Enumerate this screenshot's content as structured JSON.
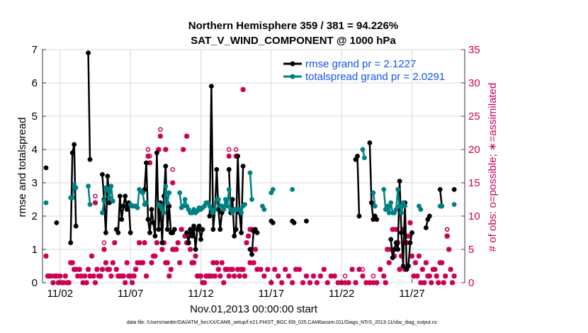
{
  "chart_data": {
    "type": "line",
    "title": "Northern Hemisphere 359 / 381 = 94.226%",
    "subtitle": "SAT_V_WIND_COMPONENT @ 1000 hPa",
    "xlabel": "Nov.01,2013 00:00:00 start",
    "ylabel": "rmse and totalspread",
    "ylabel_right": "# of obs: o=possible; ∗=assimilated",
    "xlim": [
      0.75,
      30.75
    ],
    "ylim": [
      0,
      7
    ],
    "ylim_right": [
      0,
      35
    ],
    "x_ticks": [
      2,
      7,
      12,
      17,
      22,
      27
    ],
    "x_tick_labels": [
      "11/02",
      "11/07",
      "11/12",
      "11/17",
      "11/22",
      "11/27"
    ],
    "y_ticks": [
      0,
      1,
      2,
      3,
      4,
      5,
      6,
      7
    ],
    "y_ticks_right": [
      0,
      5,
      10,
      15,
      20,
      25,
      30,
      35
    ],
    "legend_position": "top-right",
    "series": [
      {
        "name": "rmse grand pr = 2.1227",
        "color": "#000000",
        "x": [
          1.0,
          null,
          1.75,
          null,
          2.75,
          2.875,
          3.0,
          3.125,
          null,
          4.0,
          4.125,
          null,
          5.0,
          5.125,
          5.25,
          5.375,
          5.5,
          null,
          6.0,
          6.125,
          6.25,
          6.375,
          6.5,
          6.625,
          6.75,
          6.875,
          7.0,
          null,
          8.0,
          8.125,
          8.25,
          8.375,
          8.5,
          8.625,
          8.75,
          8.875,
          9.0,
          9.125,
          9.25,
          9.375,
          9.5,
          9.625,
          9.75,
          9.875,
          10.0,
          10.125,
          null,
          11.0,
          11.125,
          11.25,
          11.375,
          11.5,
          11.625,
          11.75,
          11.875,
          12.0,
          12.125,
          null,
          12.625,
          12.75,
          12.875,
          13.0,
          13.125,
          13.25,
          13.375,
          13.5,
          null,
          14.0,
          14.125,
          14.25,
          14.375,
          14.5,
          14.625,
          14.75,
          14.875,
          15.0,
          null,
          15.5,
          15.625,
          15.75,
          15.875,
          16.0,
          null,
          17.0,
          17.125,
          null,
          18.5,
          18.625,
          null,
          19.5,
          null,
          23.0,
          23.125,
          23.25,
          null,
          24.0,
          24.125,
          24.25,
          24.375,
          24.5,
          null,
          25.5,
          25.625,
          25.75,
          25.875,
          26.0,
          26.125,
          26.25,
          26.375,
          26.5,
          26.625,
          26.75,
          26.875,
          27.0,
          null,
          28.0,
          28.125,
          28.25,
          null,
          29.0,
          29.125,
          null,
          30.0
        ],
        "values": [
          3.45,
          null,
          1.8,
          null,
          1.2,
          3.9,
          4.15,
          1.7,
          null,
          6.9,
          3.7,
          null,
          3.25,
          2.5,
          1.5,
          3.2,
          2.4,
          null,
          1.6,
          1.5,
          2.6,
          1.9,
          2.3,
          2.6,
          2.2,
          2.4,
          1.5,
          null,
          2.8,
          3.6,
          1.9,
          1.5,
          2.2,
          1.8,
          1.4,
          3.9,
          1.6,
          2.4,
          1.2,
          2.6,
          3.5,
          1.6,
          2.3,
          1.5,
          1.5,
          1.6,
          null,
          1.5,
          1.2,
          1.6,
          1.4,
          1.7,
          1.0,
          1.6,
          1.7,
          1.3,
          1.6,
          null,
          2.0,
          5.9,
          1.6,
          2.2,
          3.4,
          2.2,
          1.6,
          2.1,
          null,
          3.4,
          2.1,
          2.5,
          1.4,
          1.6,
          3.8,
          2.1,
          1.5,
          3.5,
          null,
          1.0,
          0.85,
          1.55,
          1.6,
          1.5,
          null,
          1.85,
          1.8,
          null,
          1.85,
          1.8,
          null,
          1.85,
          null,
          3.7,
          3.8,
          2.0,
          null,
          4.2,
          2.4,
          1.9,
          2.0,
          1.9,
          null,
          1.3,
          0.75,
          1.0,
          1.2,
          1.0,
          3.05,
          1.5,
          0.5,
          2.4,
          0.4,
          0.5,
          1.2,
          1.5,
          null,
          1.65,
          1.9,
          2.0,
          null,
          2.8,
          2.3,
          null,
          2.8
        ]
      },
      {
        "name": "totalspread grand pr = 2.0291",
        "color": "#008080",
        "x": [
          1.0,
          null,
          2.75,
          2.875,
          3.0,
          3.125,
          null,
          4.0,
          4.125,
          null,
          5.0,
          5.125,
          5.25,
          5.375,
          5.5,
          5.625,
          5.75,
          null,
          7.0,
          7.125,
          7.25,
          7.375,
          7.5,
          7.625,
          7.75,
          7.875,
          8.0,
          8.125,
          null,
          9.0,
          9.125,
          9.25,
          9.375,
          9.5,
          9.625,
          9.75,
          null,
          10.5,
          10.625,
          10.75,
          10.875,
          11.0,
          11.125,
          11.25,
          11.375,
          11.5,
          11.625,
          11.75,
          11.875,
          12.0,
          12.125,
          12.25,
          12.375,
          12.5,
          12.625,
          12.75,
          12.875,
          13.0,
          13.125,
          13.25,
          13.375,
          13.5,
          13.625,
          13.75,
          13.875,
          14.0,
          14.125,
          14.25,
          14.375,
          14.5,
          14.625,
          14.75,
          14.875,
          15.0,
          15.125,
          null,
          15.5,
          15.625,
          null,
          16.375,
          16.5,
          null,
          17.0,
          17.125,
          null,
          18.5,
          null,
          23.5,
          23.625,
          null,
          24.25,
          24.375,
          null,
          25.0,
          25.125,
          25.25,
          25.375,
          25.5,
          25.625,
          25.75,
          25.875,
          26.0,
          26.125,
          26.25,
          26.375,
          26.5,
          null,
          27.5,
          27.625,
          null,
          29.0,
          29.125,
          null,
          30.0
        ],
        "values": [
          2.4,
          null,
          2.55,
          2.55,
          2.95,
          2.85,
          null,
          2.9,
          2.35,
          null,
          2.1,
          2.45,
          2.85,
          2.8,
          2.55,
          2.9,
          2.45,
          null,
          2.35,
          2.3,
          2.3,
          2.3,
          2.25,
          2.8,
          2.75,
          2.7,
          2.35,
          2.4,
          null,
          2.35,
          2.3,
          2.2,
          2.1,
          2.9,
          2.4,
          2.7,
          null,
          2.7,
          2.25,
          2.3,
          2.5,
          2.3,
          2.2,
          2.1,
          2.1,
          2.2,
          2.1,
          2.15,
          2.25,
          2.2,
          2.25,
          2.3,
          2.4,
          2.4,
          2.3,
          2.2,
          2.1,
          2.2,
          2.5,
          2.5,
          2.3,
          2.3,
          2.2,
          2.5,
          2.3,
          2.8,
          2.2,
          2.1,
          2.2,
          2.2,
          2.2,
          2.2,
          2.1,
          2.3,
          2.35,
          null,
          3.3,
          2.5,
          null,
          2.3,
          2.2,
          null,
          2.7,
          2.8,
          null,
          2.8,
          null,
          4.0,
          3.75,
          null,
          2.7,
          2.3,
          null,
          2.8,
          2.2,
          2.3,
          2.1,
          2.4,
          2.1,
          2.1,
          2.2,
          2.8,
          2.3,
          2.1,
          2.4,
          2.3,
          null,
          2.3,
          2.2,
          null,
          2.3,
          2.3,
          null,
          2.35
        ]
      }
    ],
    "obs_possible_x": [
      1.0,
      1.125,
      1.25,
      1.375,
      1.5,
      1.625,
      1.75,
      1.875,
      2.0,
      2.125,
      2.25,
      2.375,
      2.5,
      2.625,
      2.75,
      2.875,
      3.0,
      3.125,
      3.25,
      3.375,
      3.5,
      3.625,
      3.75,
      3.875,
      4.0,
      4.125,
      4.25,
      4.375,
      4.5,
      4.625,
      4.75,
      4.875,
      5.0,
      5.125,
      5.25,
      5.375,
      5.5,
      5.625,
      5.75,
      5.875,
      6.0,
      6.125,
      6.25,
      6.375,
      6.5,
      6.625,
      6.75,
      6.875,
      7.0,
      7.125,
      7.25,
      7.375,
      7.5,
      7.625,
      7.75,
      7.875,
      8.0,
      8.125,
      8.25,
      8.375,
      8.5,
      8.625,
      8.75,
      8.875,
      9.0,
      9.125,
      9.25,
      9.375,
      9.5,
      9.625,
      9.75,
      9.875,
      10.0,
      10.125,
      10.25,
      10.375,
      10.5,
      10.625,
      10.75,
      10.875,
      11.0,
      11.125,
      11.25,
      11.375,
      11.5,
      11.625,
      11.75,
      11.875,
      12.0,
      12.125,
      12.25,
      12.375,
      12.5,
      12.625,
      12.75,
      12.875,
      13.0,
      13.125,
      13.25,
      13.375,
      13.5,
      13.625,
      13.75,
      13.875,
      14.0,
      14.125,
      14.25,
      14.375,
      14.5,
      14.625,
      14.75,
      14.875,
      15.0,
      15.125,
      15.25,
      15.375,
      15.5,
      15.625,
      15.75,
      15.875,
      16.0,
      16.25,
      16.5,
      16.75,
      17.0,
      17.25,
      17.5,
      17.75,
      18.0,
      18.25,
      18.5,
      18.75,
      19.0,
      19.25,
      19.5,
      19.75,
      20.0,
      20.25,
      20.5,
      20.75,
      21.0,
      21.25,
      21.5,
      21.75,
      22.0,
      22.25,
      22.5,
      22.75,
      23.0,
      23.25,
      23.5,
      23.75,
      24.0,
      24.25,
      24.5,
      24.75,
      25.0,
      25.125,
      25.25,
      25.375,
      25.5,
      25.625,
      25.75,
      25.875,
      26.0,
      26.125,
      26.25,
      26.375,
      26.5,
      26.625,
      26.75,
      26.875,
      27.0,
      27.125,
      27.25,
      27.375,
      27.5,
      27.625,
      27.75,
      27.875,
      28.0,
      28.125,
      28.25,
      28.375,
      28.5,
      28.625,
      28.75,
      28.875,
      29.0,
      29.125,
      29.25,
      29.375,
      29.5,
      29.625,
      29.75,
      29.875,
      30.0
    ],
    "obs_possible_counts": [
      4,
      1,
      1,
      1,
      0,
      1,
      1,
      0,
      1,
      0,
      0,
      1,
      0,
      0,
      3,
      3,
      2,
      2,
      1,
      2,
      1,
      0,
      1,
      0,
      2,
      1,
      4,
      1,
      0,
      2,
      1,
      1,
      2,
      6,
      3,
      2,
      2,
      1,
      3,
      6,
      2,
      1,
      1,
      1,
      1,
      0,
      3,
      1,
      1,
      0,
      1,
      2,
      3,
      6,
      3,
      3,
      6,
      1,
      20,
      19,
      3,
      4,
      4,
      6,
      20,
      23,
      5,
      6,
      3,
      3,
      1,
      2,
      5,
      5,
      5,
      6,
      3,
      8,
      20,
      7,
      6,
      6,
      5,
      3,
      3,
      4,
      1,
      1,
      1,
      0,
      0,
      1,
      1,
      1,
      1,
      3,
      1,
      3,
      2,
      1,
      3,
      0,
      2,
      2,
      1,
      2,
      2,
      1,
      20,
      2,
      1,
      2,
      2,
      1,
      6,
      7,
      3,
      8,
      3,
      5,
      2,
      2,
      1,
      2,
      0,
      2,
      1,
      0,
      2,
      1,
      0,
      2,
      2,
      0,
      1,
      0,
      1,
      0,
      1,
      2,
      0,
      1,
      1,
      0,
      0,
      1,
      0,
      2,
      0,
      2,
      2,
      0,
      0,
      1,
      0,
      2,
      1,
      0,
      5,
      3,
      5,
      8,
      4,
      8,
      6,
      2,
      4,
      8,
      2,
      6,
      7,
      9,
      4,
      1,
      3,
      1,
      4,
      0,
      2,
      0,
      3,
      1,
      1,
      0,
      2,
      2,
      1,
      0,
      3,
      3,
      0,
      1,
      8,
      5,
      2,
      0,
      1,
      0,
      0,
      1
    ],
    "obs_assimilated_x": [
      1.0,
      1.125,
      1.25,
      1.375,
      1.5,
      1.625,
      1.75,
      1.875,
      2.0,
      2.125,
      2.25,
      2.375,
      2.5,
      2.625,
      2.75,
      2.875,
      3.0,
      3.125,
      3.25,
      3.375,
      3.5,
      3.625,
      3.75,
      3.875,
      4.0,
      4.125,
      4.25,
      4.375,
      4.5,
      4.625,
      4.75,
      4.875,
      5.0,
      5.125,
      5.25,
      5.375,
      5.5,
      5.625,
      5.75,
      5.875,
      6.0,
      6.125,
      6.25,
      6.375,
      6.5,
      6.625,
      6.75,
      6.875,
      7.0,
      7.125,
      7.25,
      7.375,
      7.5,
      7.625,
      7.75,
      7.875,
      8.0,
      8.125,
      8.25,
      8.375,
      8.5,
      8.625,
      8.75,
      8.875,
      9.0,
      9.125,
      9.25,
      9.375,
      9.5,
      9.625,
      9.75,
      9.875,
      10.0,
      10.125,
      10.25,
      10.375,
      10.5,
      10.625,
      10.75,
      10.875,
      11.0,
      11.125,
      11.25,
      11.375,
      11.5,
      11.625,
      11.75,
      11.875,
      12.0,
      12.125,
      12.25,
      12.375,
      12.5,
      12.625,
      12.75,
      12.875,
      13.0,
      13.125,
      13.25,
      13.375,
      13.5,
      13.625,
      13.75,
      13.875,
      14.0,
      14.125,
      14.25,
      14.375,
      14.5,
      14.625,
      14.75,
      14.875,
      15.0,
      15.125,
      15.25,
      15.375,
      15.5,
      15.625,
      15.75,
      15.875,
      16.0,
      16.25,
      16.5,
      16.75,
      17.0,
      17.25,
      17.5,
      17.75,
      18.0,
      18.25,
      18.5,
      18.75,
      19.0,
      19.25,
      19.5,
      19.75,
      20.0,
      20.25,
      20.5,
      20.75,
      21.0,
      21.25,
      21.5,
      21.75,
      22.0,
      22.25,
      22.5,
      22.75,
      23.0,
      23.25,
      23.5,
      23.75,
      24.0,
      24.25,
      24.5,
      24.75,
      25.0,
      25.125,
      25.25,
      25.375,
      25.5,
      25.625,
      25.75,
      25.875,
      26.0,
      26.125,
      26.25,
      26.375,
      26.5,
      26.625,
      26.75,
      26.875,
      27.0,
      27.125,
      27.25,
      27.375,
      27.5,
      27.625,
      27.75,
      27.875,
      28.0,
      28.125,
      28.25,
      28.375,
      28.5,
      28.625,
      28.75,
      28.875,
      29.0,
      29.125,
      29.25,
      29.375,
      29.5,
      29.625,
      29.75,
      29.875,
      30.0
    ],
    "obs_assimilated_counts": [
      4,
      1,
      1,
      1,
      0,
      1,
      1,
      0,
      1,
      0,
      0,
      1,
      0,
      0,
      3,
      3,
      2,
      2,
      1,
      2,
      1,
      0,
      1,
      0,
      2,
      1,
      4,
      1,
      0,
      2,
      1,
      1,
      2,
      5,
      3,
      2,
      2,
      1,
      3,
      6,
      2,
      1,
      1,
      1,
      1,
      0,
      3,
      1,
      1,
      0,
      1,
      2,
      3,
      6,
      3,
      3,
      6,
      1,
      19,
      18,
      3,
      4,
      4,
      6,
      20,
      22,
      5,
      6,
      3,
      3,
      1,
      2,
      5,
      5,
      5,
      6,
      3,
      8,
      20,
      7,
      6,
      6,
      5,
      3,
      3,
      4,
      1,
      1,
      1,
      0,
      0,
      1,
      1,
      1,
      1,
      3,
      1,
      3,
      2,
      1,
      3,
      0,
      2,
      2,
      1,
      2,
      2,
      1,
      19,
      2,
      1,
      2,
      2,
      1,
      6,
      7,
      3,
      8,
      3,
      5,
      2,
      2,
      1,
      2,
      0,
      2,
      1,
      0,
      2,
      1,
      0,
      2,
      2,
      0,
      1,
      0,
      1,
      0,
      1,
      2,
      0,
      1,
      1,
      0,
      0,
      0,
      0,
      2,
      0,
      2,
      1,
      0,
      0,
      0,
      0,
      2,
      1,
      0,
      5,
      3,
      5,
      8,
      4,
      8,
      6,
      2,
      4,
      8,
      2,
      6,
      7,
      9,
      4,
      1,
      3,
      1,
      4,
      0,
      2,
      0,
      3,
      1,
      1,
      0,
      2,
      2,
      1,
      0,
      3,
      3,
      0,
      1,
      7,
      5,
      2,
      0,
      1,
      0,
      0,
      1
    ],
    "obs_highlights": [
      {
        "x": 4.5,
        "possible": 13,
        "assimilated": 12
      },
      {
        "x": 9.5,
        "possible": 20,
        "assimilated": 20
      },
      {
        "x": 10.0,
        "possible": 17,
        "assimilated": 15
      },
      {
        "x": 11.0,
        "possible": 22,
        "assimilated": 22
      },
      {
        "x": 14.0,
        "possible": 20,
        "assimilated": 19
      },
      {
        "x": 15.0,
        "possible": 29,
        "assimilated": 29
      },
      {
        "x": 15.5,
        "possible": 8,
        "assimilated": 8
      },
      {
        "x": 29.5,
        "possible": 8,
        "assimilated": 7
      }
    ],
    "footer": "data file: /Users/raeder/DAI/ATM_forcXX/CAM6_setup/f.e21.FHIST_BGC.f09_025.CAM6assim.011/Diags_NTrS_2013-11/obs_diag_output.nc"
  },
  "colors": {
    "rmse": "#000000",
    "spread": "#008080",
    "obs": "#cc0055",
    "legend_text": "#1155ee"
  }
}
